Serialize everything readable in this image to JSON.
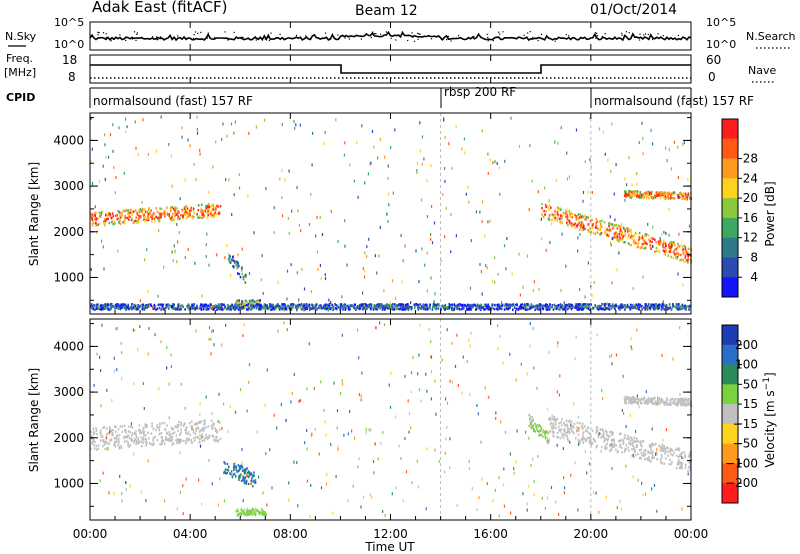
{
  "header": {
    "station": "Adak East (fitACF)",
    "beam": "Beam 12",
    "date": "01/Oct/2014"
  },
  "nsky_panel": {
    "left_label": "N.Sky",
    "right_label": "N.Search",
    "left_ticks": [
      "10^5",
      "10^0"
    ],
    "right_ticks": [
      "10^5",
      "10^0"
    ]
  },
  "freq_panel": {
    "left_label_line1": "Freq.",
    "left_label_line2": "[MHz]",
    "right_label": "Nave",
    "left_ticks": [
      "18",
      "8"
    ],
    "right_ticks": [
      "60",
      "0"
    ]
  },
  "cpid_panel": {
    "label": "CPID",
    "segments": [
      {
        "text": "normalsound (fast) 157 RF",
        "start_h": 0,
        "end_h": 14
      },
      {
        "text": "rbsp 200 RF",
        "start_h": 14,
        "end_h": 20
      },
      {
        "text": "normalsound (fast) 157 RF",
        "start_h": 20,
        "end_h": 24
      }
    ]
  },
  "chart_data": [
    {
      "type": "heatmap",
      "ylabel": "Slant Range [km]",
      "xlabel": "Time UT",
      "x_ticks": [
        "00:00",
        "04:00",
        "08:00",
        "12:00",
        "16:00",
        "20:00",
        "00:00"
      ],
      "y_ticks": [
        "1000",
        "2000",
        "3000",
        "4000"
      ],
      "ylim": [
        200,
        4600
      ],
      "xlim_hours": [
        0,
        24
      ],
      "colorbar": {
        "label": "Power [dB]",
        "ticks": [
          "4",
          "8",
          "12",
          "16",
          "20",
          "24",
          "28"
        ],
        "range": [
          0,
          32
        ],
        "colors": [
          "#1414ff",
          "#2b4bb0",
          "#2e7a8a",
          "#3ca860",
          "#8cc83c",
          "#ffd21e",
          "#ff9a1e",
          "#ff5a14",
          "#ff1e1e"
        ]
      },
      "echo_bands": [
        {
          "t0": 0.0,
          "t1": 5.2,
          "r_start": 2300,
          "r_end": 2500,
          "width": 300,
          "power": 26
        },
        {
          "t0": 5.5,
          "t1": 6.2,
          "r_start": 1500,
          "r_end": 1000,
          "width": 250,
          "power": 12
        },
        {
          "t0": 5.8,
          "t1": 6.8,
          "r_start": 450,
          "r_end": 450,
          "width": 150,
          "power": 18
        },
        {
          "t0": 18.0,
          "t1": 24.0,
          "r_start": 2500,
          "r_end": 1500,
          "width": 350,
          "power": 26
        },
        {
          "t0": 21.3,
          "t1": 24.0,
          "r_start": 2850,
          "r_end": 2800,
          "width": 150,
          "power": 26
        },
        {
          "t0": 0.0,
          "t1": 24.0,
          "r_start": 380,
          "r_end": 380,
          "width": 120,
          "power": 8
        }
      ]
    },
    {
      "type": "heatmap",
      "ylabel": "Slant Range [km]",
      "xlabel": "Time UT",
      "x_ticks": [
        "00:00",
        "04:00",
        "08:00",
        "12:00",
        "16:00",
        "20:00",
        "00:00"
      ],
      "y_ticks": [
        "1000",
        "2000",
        "3000",
        "4000"
      ],
      "ylim": [
        200,
        4600
      ],
      "xlim_hours": [
        0,
        24
      ],
      "colorbar": {
        "label": "Velocity [m s^-1]",
        "ticks": [
          "200",
          "100",
          "50",
          "15",
          "-15",
          "-50",
          "-100",
          "-200"
        ],
        "range": [
          -250,
          250
        ],
        "colors": [
          "#1e3cb4",
          "#2a6ec8",
          "#2a8c5a",
          "#7ad23c",
          "#c0c0c0",
          "#ffd21e",
          "#ff9a1e",
          "#ff5a14",
          "#ff1e1e"
        ]
      },
      "echo_bands": [
        {
          "t0": 0.0,
          "t1": 5.2,
          "r_start": 2000,
          "r_end": 2200,
          "width": 500,
          "velocity": 0
        },
        {
          "t0": 5.3,
          "t1": 6.6,
          "r_start": 1400,
          "r_end": 1100,
          "width": 350,
          "velocity": 150
        },
        {
          "t0": 5.8,
          "t1": 7.0,
          "r_start": 400,
          "r_end": 400,
          "width": 150,
          "velocity": 40
        },
        {
          "t0": 17.5,
          "t1": 18.3,
          "r_start": 2400,
          "r_end": 2000,
          "width": 250,
          "velocity": 40
        },
        {
          "t0": 18.3,
          "t1": 24.0,
          "r_start": 2300,
          "r_end": 1500,
          "width": 450,
          "velocity": 0
        },
        {
          "t0": 21.3,
          "t1": 24.0,
          "r_start": 2850,
          "r_end": 2800,
          "width": 150,
          "velocity": 0
        }
      ]
    }
  ]
}
